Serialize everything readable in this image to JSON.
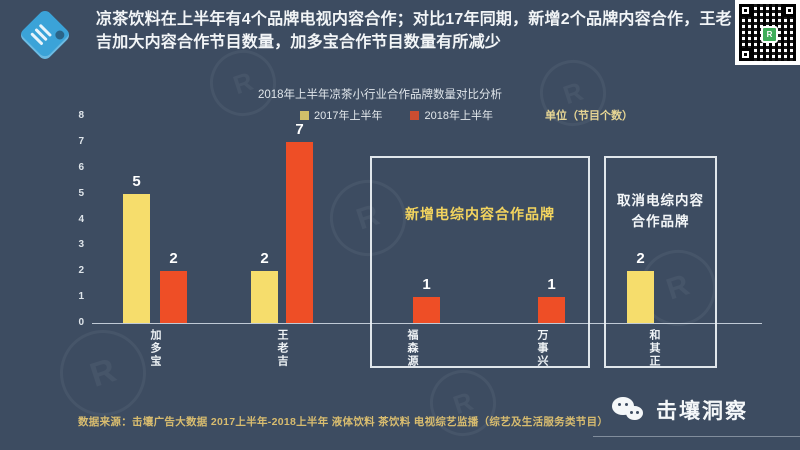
{
  "page": {
    "background_color": "#3d4c61"
  },
  "header": {
    "title": "凉茶饮料在上半年有4个品牌电视内容合作；对比17年同期，新增2个品牌内容合作，王老吉加大内容合作节目数量，加多宝合作节目数量有所减少",
    "tag_icon": "blue-tag-icon",
    "qr_code": "wechat-qr-code"
  },
  "chart_data": {
    "type": "bar",
    "title": "2018年上半年凉茶小行业合作品牌数量对比分析",
    "unit_label": "单位（节目个数）",
    "ylim": [
      0,
      8
    ],
    "y_ticks": [
      0,
      1,
      2,
      3,
      4,
      5,
      6,
      7,
      8
    ],
    "grid": false,
    "legend_position": "top",
    "series": [
      {
        "name": "2017年上半年",
        "color": "#f6dd6c"
      },
      {
        "name": "2018年上半年",
        "color": "#ee4e26"
      }
    ],
    "categories": [
      "加多宝",
      "王老吉",
      "福森源",
      "万事兴",
      "和其正"
    ],
    "bars": [
      {
        "category": "加多宝",
        "series": "2017年上半年",
        "value": 5
      },
      {
        "category": "加多宝",
        "series": "2018年上半年",
        "value": 2
      },
      {
        "category": "王老吉",
        "series": "2017年上半年",
        "value": 2
      },
      {
        "category": "王老吉",
        "series": "2018年上半年",
        "value": 7
      },
      {
        "category": "福森源",
        "series": "2018年上半年",
        "value": 1
      },
      {
        "category": "万事兴",
        "series": "2018年上半年",
        "value": 1
      },
      {
        "category": "和其正",
        "series": "2017年上半年",
        "value": 2
      }
    ],
    "annotations": [
      {
        "label": "新增电综内容合作品牌",
        "categories": [
          "福森源",
          "万事兴"
        ],
        "label_color": "#f3d45e"
      },
      {
        "label": "取消电综内容合作品牌",
        "categories": [
          "和其正"
        ],
        "label_color": "#f4f7f9"
      }
    ]
  },
  "footer": {
    "source": "数据来源：击壤广告大数据 2017上半年-2018上半年 液体饮料 茶饮料 电视综艺监播（综艺及生活服务类节目）",
    "wechat_icon": "wechat-icon",
    "brand": "击壤洞察"
  }
}
